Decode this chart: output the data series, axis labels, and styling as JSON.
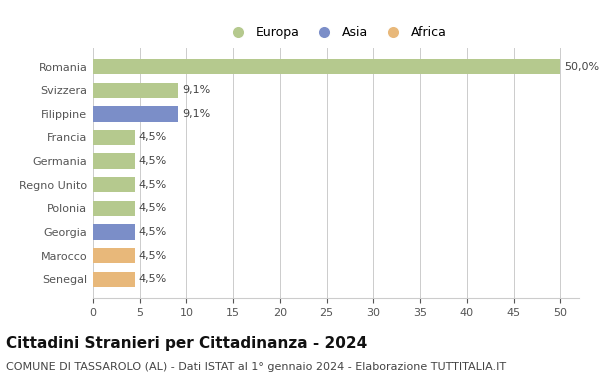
{
  "countries": [
    "Romania",
    "Svizzera",
    "Filippine",
    "Francia",
    "Germania",
    "Regno Unito",
    "Polonia",
    "Georgia",
    "Marocco",
    "Senegal"
  ],
  "values": [
    50.0,
    9.1,
    9.1,
    4.5,
    4.5,
    4.5,
    4.5,
    4.5,
    4.5,
    4.5
  ],
  "labels": [
    "50,0%",
    "9,1%",
    "9,1%",
    "4,5%",
    "4,5%",
    "4,5%",
    "4,5%",
    "4,5%",
    "4,5%",
    "4,5%"
  ],
  "continents": [
    "Europa",
    "Europa",
    "Asia",
    "Europa",
    "Europa",
    "Europa",
    "Europa",
    "Asia",
    "Africa",
    "Africa"
  ],
  "colors": {
    "Europa": "#b5c98e",
    "Asia": "#7b8ec8",
    "Africa": "#e8b87a"
  },
  "legend_items": [
    "Europa",
    "Asia",
    "Africa"
  ],
  "xlim": [
    0,
    52
  ],
  "xticks": [
    0,
    5,
    10,
    15,
    20,
    25,
    30,
    35,
    40,
    45,
    50
  ],
  "title": "Cittadini Stranieri per Cittadinanza - 2024",
  "subtitle": "COMUNE DI TASSAROLO (AL) - Dati ISTAT al 1° gennaio 2024 - Elaborazione TUTTITALIA.IT",
  "title_fontsize": 11,
  "subtitle_fontsize": 8,
  "background_color": "#ffffff",
  "bar_height": 0.65,
  "grid_color": "#cccccc",
  "label_fontsize": 8,
  "ytick_fontsize": 8,
  "xtick_fontsize": 8
}
